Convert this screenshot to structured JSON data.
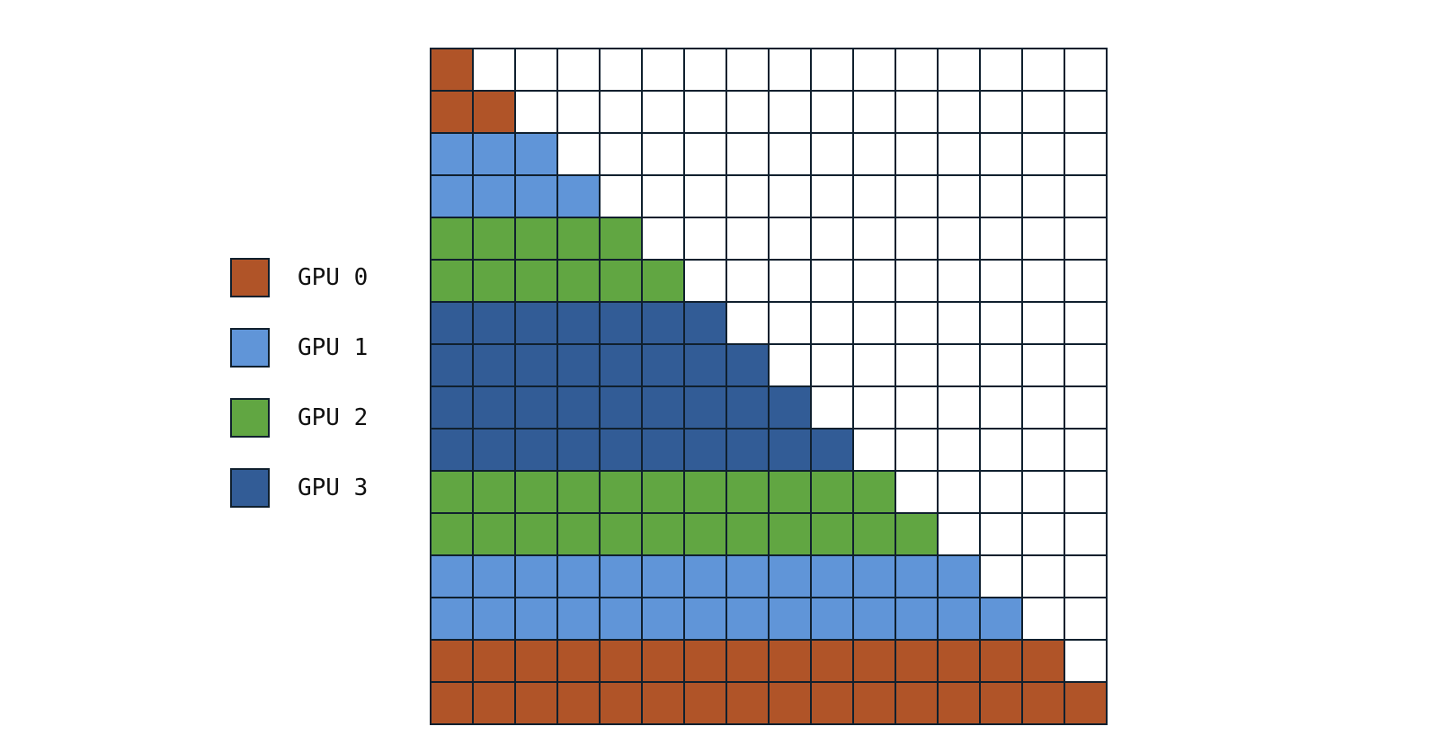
{
  "legend": {
    "items": [
      {
        "label": "GPU 0",
        "color": "#b05428"
      },
      {
        "label": "GPU 1",
        "color": "#6095d8"
      },
      {
        "label": "GPU 2",
        "color": "#61a642"
      },
      {
        "label": "GPU 3",
        "color": "#325c96"
      }
    ]
  },
  "matrix": {
    "size": 16,
    "layout": "lower-triangular",
    "empty_color": "#ffffff",
    "row_gpu": [
      0,
      0,
      1,
      1,
      2,
      2,
      3,
      3,
      3,
      3,
      2,
      2,
      1,
      1,
      0,
      0
    ]
  }
}
